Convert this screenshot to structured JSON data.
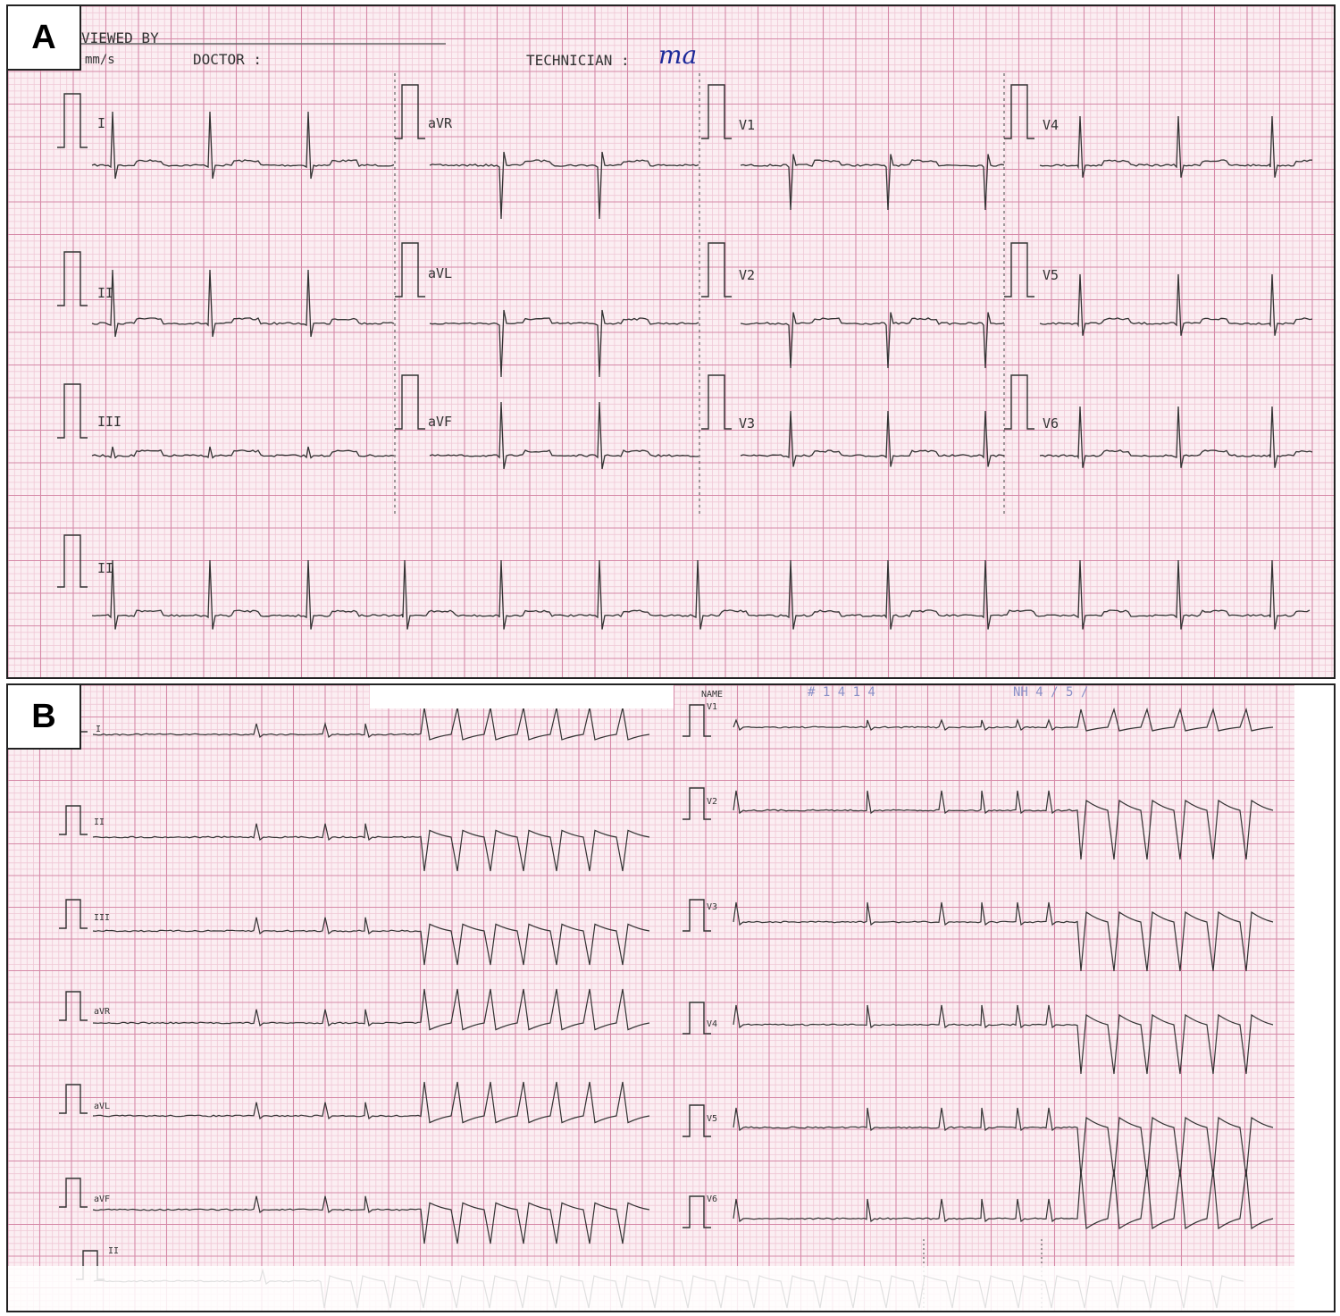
{
  "panels": [
    {
      "label": "A",
      "header": {
        "reviewed_by": "VIEWED BY",
        "speed": "mm/s",
        "doctor": "DOCTOR :",
        "technician": "TECHNICIAN :",
        "technician_signature": "ma"
      },
      "leads": [
        "I",
        "aVR",
        "V1",
        "V4",
        "II",
        "aVL",
        "V2",
        "V5",
        "III",
        "aVF",
        "V3",
        "V6",
        "II"
      ]
    },
    {
      "label": "B",
      "header": {
        "name": "NAME",
        "faded_text_1": "# 1 4 1 4",
        "faded_text_2": "NH 4 / 5 /"
      },
      "leads": [
        "I",
        "II",
        "III",
        "aVR",
        "aVL",
        "aVF",
        "V1",
        "V2",
        "V3",
        "V4",
        "V5",
        "V6",
        "II"
      ]
    }
  ],
  "colors": {
    "grid_minor": "#f0c8d6",
    "grid_major": "#d68aa8",
    "paper": "#fbeef2",
    "trace": "#333333",
    "signature": "#1d2a9a"
  }
}
